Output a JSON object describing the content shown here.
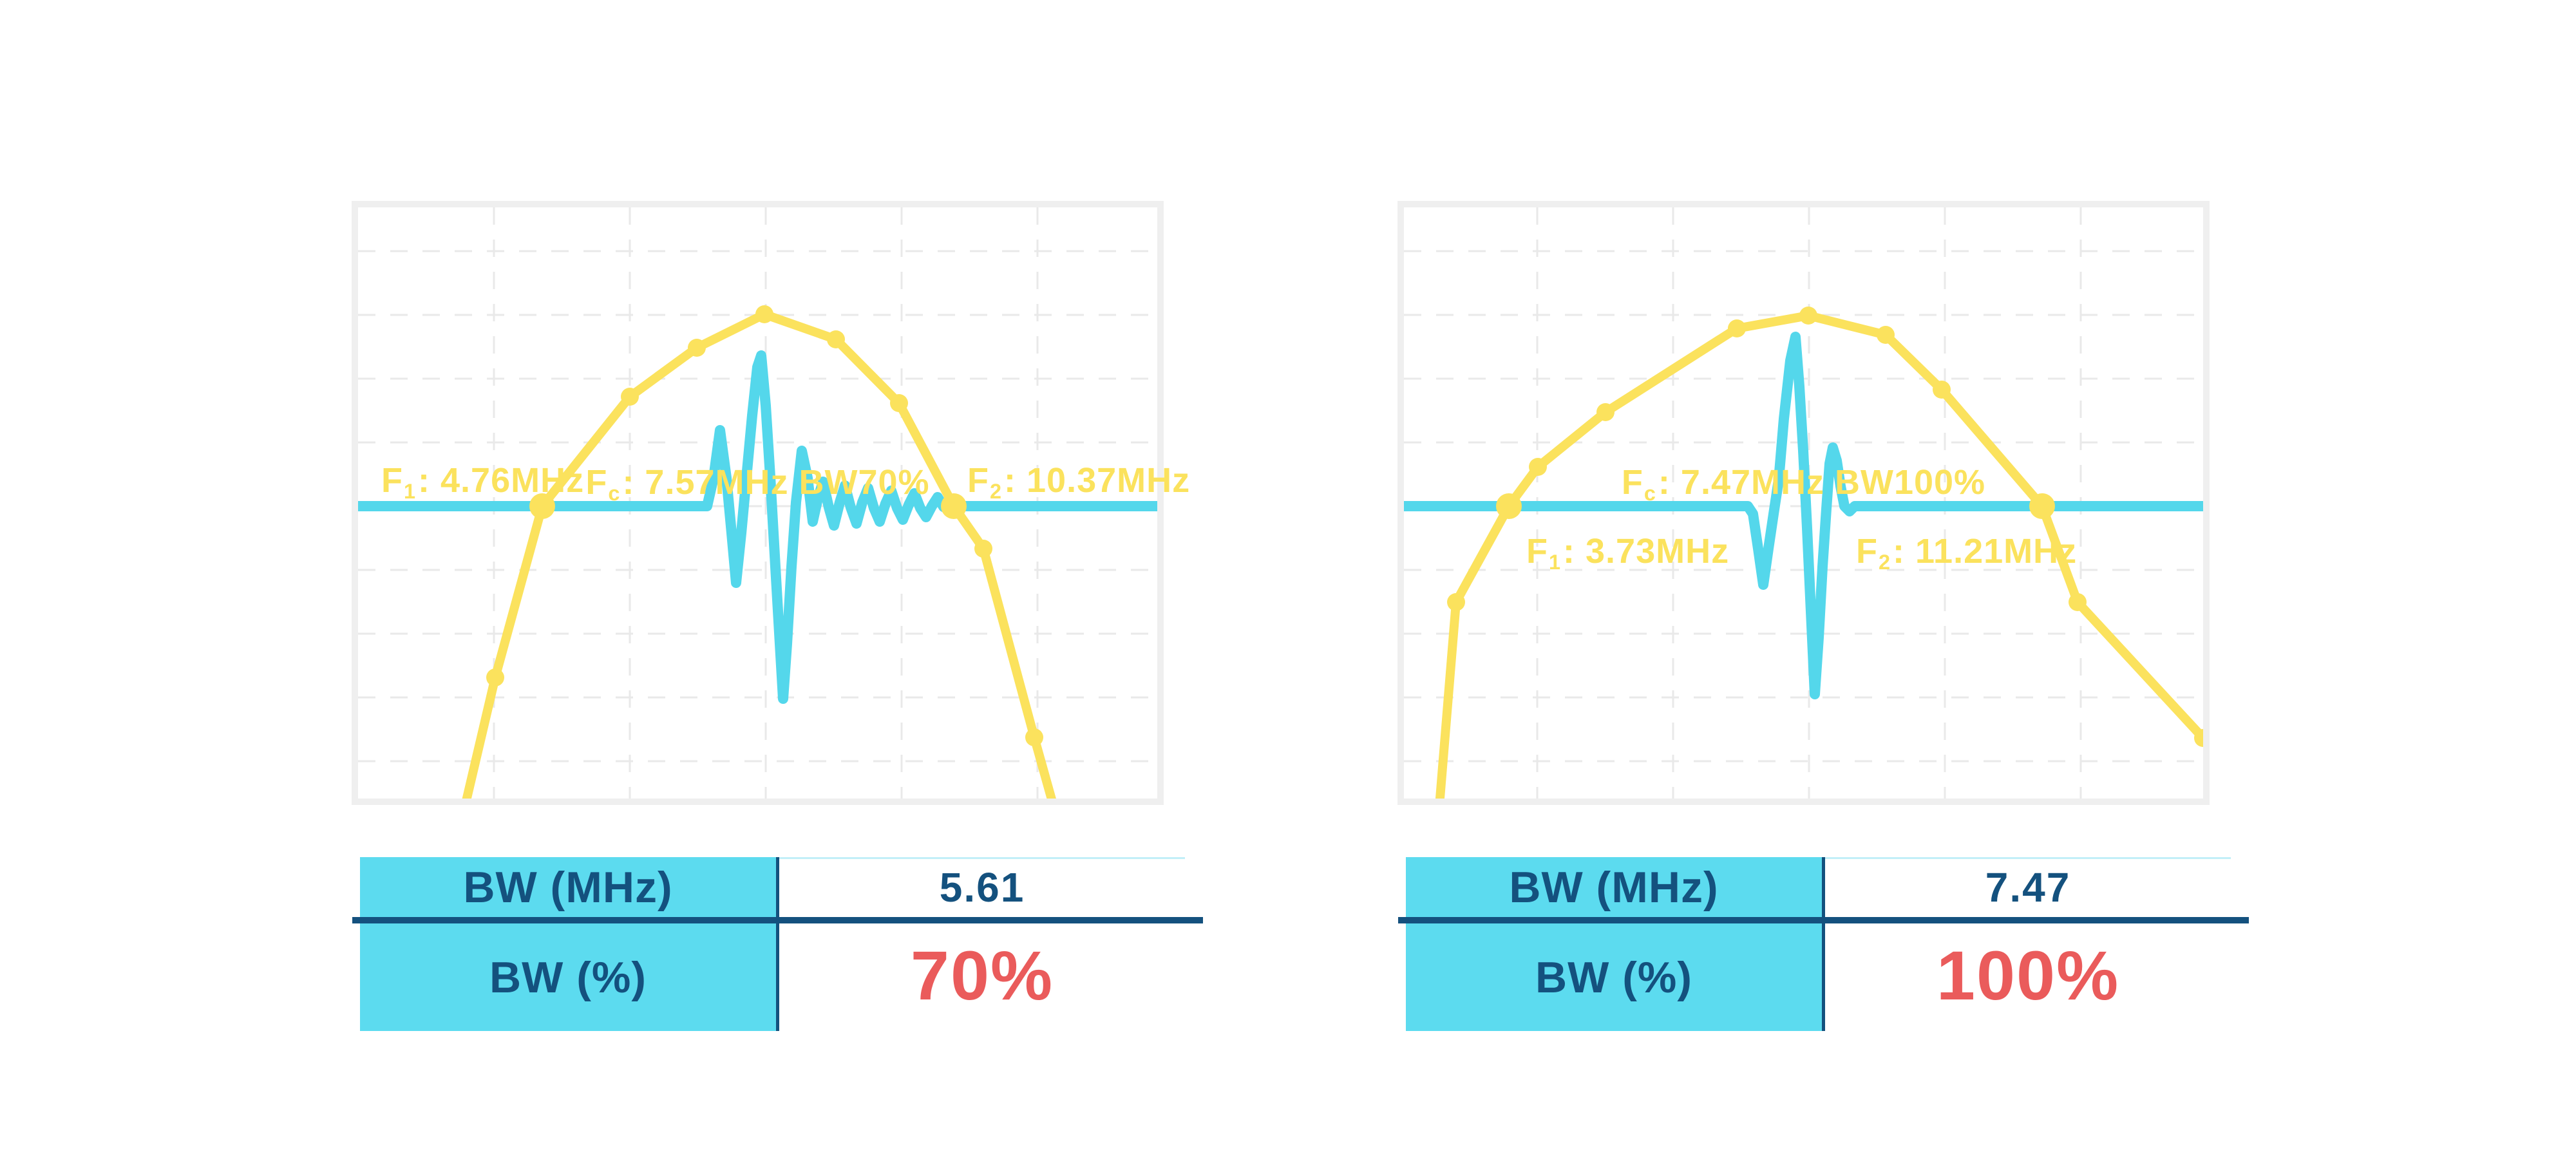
{
  "colors": {
    "yellow": "#FBE25D",
    "cyan": "#54D7EB",
    "cyan_cell": "#5CDBEF",
    "navy": "#14517E",
    "red": "#EA5B5B",
    "grid": "#E9E9E9",
    "frame": "#EFEFEF"
  },
  "panels": [
    {
      "title": {
        "f": "F",
        "sub": "c",
        "rest": ": 7.57MHz BW70%"
      },
      "f1": {
        "f": "F",
        "sub": "1",
        "rest": ": 4.76MHz"
      },
      "f2": {
        "f": "F",
        "sub": "2",
        "rest": ": 10.37MHz"
      },
      "chart": {
        "inner": [
          556,
          322,
          1241,
          918
        ],
        "baseline_y": 786,
        "vlines": [
          767,
          978,
          1189,
          1400,
          1611
        ],
        "hlines": [
          390,
          489,
          588,
          687,
          786,
          885,
          984,
          1083,
          1182
        ],
        "spectrum": [
          [
            722,
            1252
          ],
          [
            769,
            1052
          ],
          [
            842,
            786
          ],
          [
            978,
            616
          ],
          [
            1082,
            540
          ],
          [
            1187,
            488
          ],
          [
            1298,
            527
          ],
          [
            1396,
            626
          ],
          [
            1481,
            786
          ],
          [
            1527,
            852
          ],
          [
            1606,
            1145
          ],
          [
            1636,
            1252
          ]
        ],
        "markers": [
          [
            769,
            1052,
            0
          ],
          [
            842,
            786,
            1
          ],
          [
            978,
            616,
            0
          ],
          [
            1082,
            540,
            0
          ],
          [
            1187,
            488,
            0
          ],
          [
            1298,
            527,
            0
          ],
          [
            1396,
            626,
            0
          ],
          [
            1481,
            786,
            1
          ],
          [
            1527,
            852,
            0
          ],
          [
            1606,
            1145,
            0
          ]
        ],
        "pulse": [
          [
            1098,
            786
          ],
          [
            1108,
            742
          ],
          [
            1118,
            668
          ],
          [
            1128,
            742
          ],
          [
            1136,
            828
          ],
          [
            1143,
            905
          ],
          [
            1151,
            828
          ],
          [
            1159,
            742
          ],
          [
            1168,
            645
          ],
          [
            1176,
            570
          ],
          [
            1182,
            552
          ],
          [
            1189,
            630
          ],
          [
            1196,
            740
          ],
          [
            1204,
            880
          ],
          [
            1211,
            1000
          ],
          [
            1216,
            1085
          ],
          [
            1222,
            1000
          ],
          [
            1229,
            880
          ],
          [
            1236,
            780
          ],
          [
            1245,
            700
          ],
          [
            1254,
            742
          ],
          [
            1262,
            810
          ],
          [
            1270,
            774
          ],
          [
            1278,
            748
          ],
          [
            1287,
            788
          ],
          [
            1295,
            816
          ],
          [
            1304,
            780
          ],
          [
            1312,
            754
          ],
          [
            1321,
            788
          ],
          [
            1330,
            813
          ],
          [
            1339,
            780
          ],
          [
            1348,
            758
          ],
          [
            1357,
            789
          ],
          [
            1366,
            810
          ],
          [
            1375,
            782
          ],
          [
            1384,
            762
          ],
          [
            1393,
            789
          ],
          [
            1402,
            807
          ],
          [
            1411,
            784
          ],
          [
            1420,
            766
          ],
          [
            1429,
            789
          ],
          [
            1438,
            803
          ],
          [
            1447,
            786
          ],
          [
            1456,
            772
          ],
          [
            1465,
            787
          ],
          [
            1474,
            792
          ],
          [
            1481,
            786
          ]
        ]
      },
      "table": {
        "rows": [
          {
            "label": "BW (MHz)",
            "value": "5.61"
          },
          {
            "label": "BW (%)",
            "value": "70%"
          }
        ]
      }
    },
    {
      "title": {
        "f": "F",
        "sub": "c",
        "rest": ": 7.47MHz BW100%"
      },
      "f1": {
        "f": "F",
        "sub": "1",
        "rest": ": 3.73MHz"
      },
      "f2": {
        "f": "F",
        "sub": "2",
        "rest": ": 11.21MHz"
      },
      "chart": {
        "inner": [
          2180,
          322,
          1241,
          918
        ],
        "baseline_y": 786,
        "vlines": [
          2387,
          2598,
          2809,
          3020,
          3231
        ],
        "hlines": [
          390,
          489,
          588,
          687,
          786,
          885,
          984,
          1083,
          1182
        ],
        "spectrum": [
          [
            2235,
            1252
          ],
          [
            2261,
            935
          ],
          [
            2343,
            786
          ],
          [
            2388,
            725
          ],
          [
            2493,
            640
          ],
          [
            2697,
            510
          ],
          [
            2808,
            490
          ],
          [
            2928,
            520
          ],
          [
            3015,
            605
          ],
          [
            3171,
            786
          ],
          [
            3226,
            935
          ],
          [
            3421,
            1146
          ]
        ],
        "markers": [
          [
            2261,
            935,
            0
          ],
          [
            2343,
            786,
            1
          ],
          [
            2388,
            725,
            0
          ],
          [
            2493,
            640,
            0
          ],
          [
            2697,
            510,
            0
          ],
          [
            2808,
            490,
            0
          ],
          [
            2928,
            520,
            0
          ],
          [
            3015,
            605,
            0
          ],
          [
            3171,
            786,
            1
          ],
          [
            3226,
            935,
            0
          ],
          [
            3421,
            1146,
            0
          ]
        ],
        "pulse": [
          [
            2714,
            786
          ],
          [
            2722,
            798
          ],
          [
            2730,
            852
          ],
          [
            2738,
            908
          ],
          [
            2746,
            852
          ],
          [
            2754,
            798
          ],
          [
            2762,
            745
          ],
          [
            2770,
            650
          ],
          [
            2780,
            560
          ],
          [
            2788,
            523
          ],
          [
            2794,
            600
          ],
          [
            2800,
            700
          ],
          [
            2806,
            820
          ],
          [
            2812,
            950
          ],
          [
            2818,
            1078
          ],
          [
            2824,
            990
          ],
          [
            2830,
            880
          ],
          [
            2836,
            790
          ],
          [
            2841,
            720
          ],
          [
            2846,
            695
          ],
          [
            2852,
            715
          ],
          [
            2858,
            755
          ],
          [
            2864,
            786
          ],
          [
            2872,
            794
          ],
          [
            2880,
            786
          ]
        ]
      },
      "table": {
        "rows": [
          {
            "label": "BW (MHz)",
            "value": "7.47"
          },
          {
            "label": "BW (%)",
            "value": "100%"
          }
        ]
      }
    }
  ],
  "chart_data": [
    {
      "type": "line",
      "title": "Fc: 7.57MHz BW70%",
      "annotations": {
        "fc_label": "Fc: 7.57MHz BW70%",
        "f1_label": "F1: 4.76MHz",
        "f2_label": "F2: 10.37MHz"
      },
      "values": {
        "fc_mhz": 7.57,
        "f1_mhz": 4.76,
        "f2_mhz": 10.37,
        "bw_mhz": 5.61,
        "bw_pct": 70
      },
      "series": [
        {
          "name": "frequency-spectrum",
          "x_mhz": [
            4.12,
            4.76,
            5.95,
            6.87,
            7.79,
            8.76,
            9.62,
            10.37,
            10.77,
            11.47
          ],
          "amplitude_norm": [
            0.25,
            0.6,
            0.83,
            0.93,
            1.0,
            0.95,
            0.82,
            0.6,
            0.52,
            0.13
          ],
          "note": "yellow curve with dot markers; large dots mark F1/F2 bandwidth crossings on threshold line"
        },
        {
          "name": "pulse-echo-waveform",
          "description": "cyan time-domain pulse with long decaying ringing, plotted on the horizontal threshold line"
        }
      ],
      "xlabel": "",
      "ylabel": "",
      "grid": true,
      "legend": false
    },
    {
      "type": "line",
      "title": "Fc: 7.47MHz BW100%",
      "annotations": {
        "fc_label": "Fc: 7.47MHz BW100%",
        "f1_label": "F1: 3.73MHz",
        "f2_label": "F2: 11.21MHz"
      },
      "values": {
        "fc_mhz": 7.47,
        "f1_mhz": 3.73,
        "f2_mhz": 11.21,
        "bw_mhz": 7.47,
        "bw_pct": 100
      },
      "series": [
        {
          "name": "frequency-spectrum",
          "x_mhz": [
            2.99,
            3.73,
            4.14,
            5.09,
            6.93,
            7.93,
            9.01,
            9.8,
            11.21,
            11.71,
            13.47
          ],
          "amplitude_norm": [
            0.41,
            0.6,
            0.69,
            0.8,
            0.97,
            1.0,
            0.96,
            0.85,
            0.6,
            0.41,
            0.13
          ],
          "note": "broader spectrum; last marker clipped at right plot edge"
        },
        {
          "name": "pulse-echo-waveform",
          "description": "cyan short pulse with minimal ringing, plotted on the horizontal threshold line"
        }
      ],
      "xlabel": "",
      "ylabel": "",
      "grid": true,
      "legend": false
    }
  ]
}
